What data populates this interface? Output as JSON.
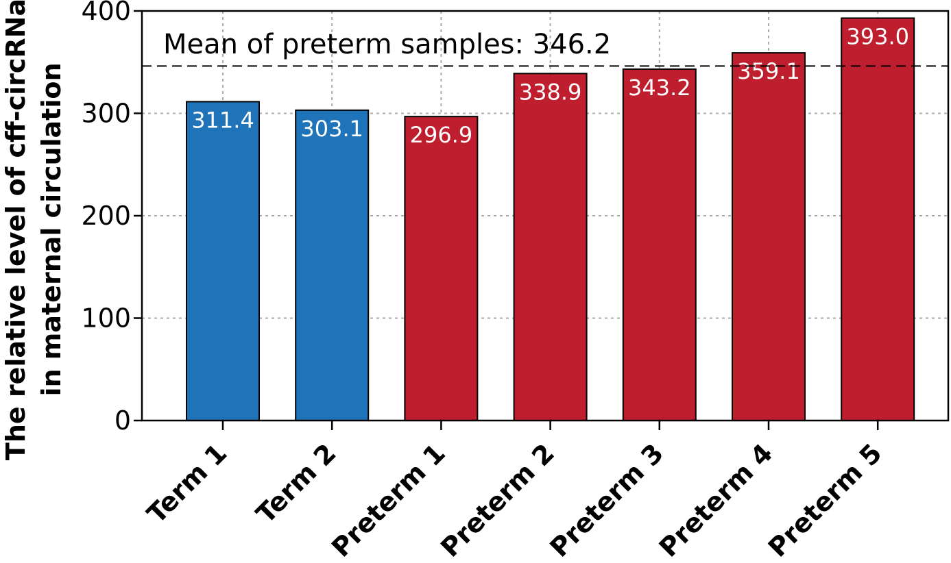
{
  "chart_data": {
    "type": "bar",
    "title": "",
    "xlabel": "",
    "ylabel_lines": [
      "The relative level of cff-circRNa",
      "in maternal circulation"
    ],
    "categories": [
      "Term 1",
      "Term 2",
      "Preterm 1",
      "Preterm 2",
      "Preterm 3",
      "Preterm 4",
      "Preterm 5"
    ],
    "values": [
      311.4,
      303.1,
      296.9,
      338.9,
      343.2,
      359.1,
      393.0
    ],
    "value_labels": [
      "311.4",
      "303.1",
      "296.9",
      "338.9",
      "343.2",
      "359.1",
      "393.0"
    ],
    "groups": [
      "Term",
      "Term",
      "Preterm",
      "Preterm",
      "Preterm",
      "Preterm",
      "Preterm"
    ],
    "group_colors": {
      "Term": "#1f73b8",
      "Preterm": "#be1e2d"
    },
    "ylim": [
      0,
      400
    ],
    "yticks": [
      0,
      100,
      200,
      300,
      400
    ],
    "grid": true,
    "reference_line": {
      "value": 346.2,
      "label": "Mean of preterm samples: 346.2",
      "style": "dashed"
    }
  }
}
